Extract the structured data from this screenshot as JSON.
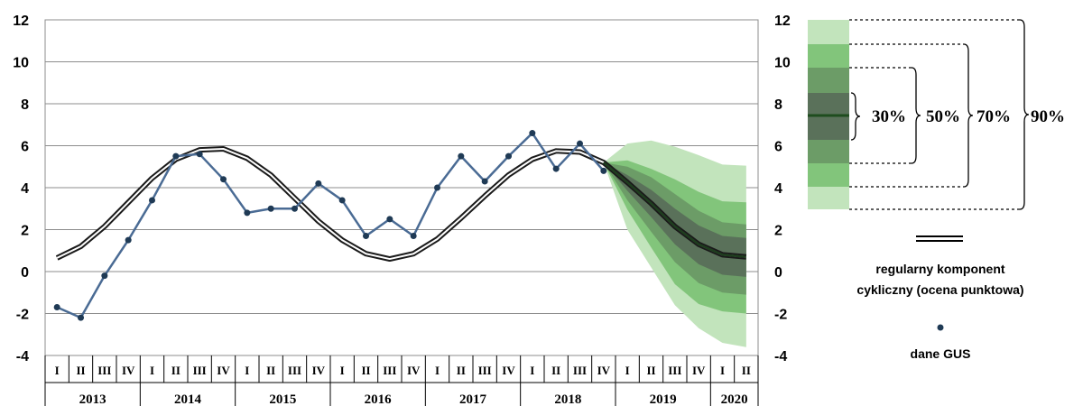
{
  "chart_data": {
    "type": "line",
    "title": "",
    "xlabel": "",
    "ylabel": "",
    "ylim": [
      -4,
      12
    ],
    "yticks": [
      "12",
      "10",
      "8",
      "6",
      "4",
      "2",
      "0",
      "-2",
      "-4"
    ],
    "quarter_labels": [
      "I",
      "II",
      "III",
      "IV",
      "I",
      "II",
      "III",
      "IV",
      "I",
      "II",
      "III",
      "IV",
      "I",
      "II",
      "III",
      "IV",
      "I",
      "II",
      "III",
      "IV",
      "I",
      "II",
      "III",
      "IV",
      "I",
      "II",
      "III",
      "IV",
      "I",
      "II"
    ],
    "year_labels": [
      "2013",
      "2014",
      "2015",
      "2016",
      "2017",
      "2018",
      "2019",
      "2020"
    ],
    "x": [
      "2013Q1",
      "2013Q2",
      "2013Q3",
      "2013Q4",
      "2014Q1",
      "2014Q2",
      "2014Q3",
      "2014Q4",
      "2015Q1",
      "2015Q2",
      "2015Q3",
      "2015Q4",
      "2016Q1",
      "2016Q2",
      "2016Q3",
      "2016Q4",
      "2017Q1",
      "2017Q2",
      "2017Q3",
      "2017Q4",
      "2018Q1",
      "2018Q2",
      "2018Q3",
      "2018Q4",
      "2019Q1",
      "2019Q2",
      "2019Q3",
      "2019Q4",
      "2020Q1",
      "2020Q2"
    ],
    "series": [
      {
        "name": "dane GUS",
        "color": "#4a6b94",
        "values": [
          -1.7,
          -2.2,
          -0.2,
          1.5,
          3.4,
          5.5,
          5.6,
          4.4,
          2.8,
          3.0,
          3.0,
          4.2,
          3.4,
          1.7,
          2.5,
          1.7,
          4.0,
          5.5,
          4.3,
          5.5,
          6.6,
          4.9,
          6.1,
          4.8,
          null,
          null,
          null,
          null,
          null,
          null
        ]
      },
      {
        "name": "regularny komponent cykliczny (ocena punktowa)",
        "color": "#1a1a1a",
        "values": [
          0.65,
          1.2,
          2.15,
          3.3,
          4.45,
          5.35,
          5.8,
          5.85,
          5.4,
          4.6,
          3.5,
          2.4,
          1.5,
          0.85,
          0.6,
          0.85,
          1.55,
          2.55,
          3.6,
          4.6,
          5.35,
          5.75,
          5.7,
          5.2,
          4.25,
          3.25,
          2.15,
          1.3,
          0.8,
          0.7
        ]
      }
    ],
    "fan": {
      "start_index": 23,
      "center": [
        5.2,
        4.25,
        3.25,
        2.15,
        1.3,
        0.8,
        0.7
      ],
      "bands": [
        {
          "label": "90%",
          "color": "#c2e4bc",
          "lower": [
            5.2,
            2.0,
            0.2,
            -1.6,
            -2.7,
            -3.4,
            -3.6
          ],
          "upper": [
            5.2,
            6.1,
            6.25,
            5.95,
            5.55,
            5.1,
            5.05
          ]
        },
        {
          "label": "70%",
          "color": "#82c57b",
          "lower": [
            5.2,
            2.95,
            1.15,
            -0.6,
            -1.55,
            -1.9,
            -2.0
          ],
          "upper": [
            5.2,
            5.3,
            4.9,
            4.4,
            3.8,
            3.35,
            3.3
          ]
        },
        {
          "label": "50%",
          "color": "#6c9c67",
          "lower": [
            5.2,
            3.4,
            1.9,
            0.45,
            -0.55,
            -1.0,
            -1.1
          ],
          "upper": [
            5.2,
            5.0,
            4.5,
            3.7,
            2.9,
            2.35,
            2.25
          ]
        },
        {
          "label": "30%",
          "color": "#5a715a",
          "lower": [
            5.2,
            3.85,
            2.6,
            1.3,
            0.35,
            -0.15,
            -0.25
          ],
          "upper": [
            5.2,
            4.6,
            3.9,
            3.0,
            2.2,
            1.7,
            1.6
          ]
        }
      ]
    },
    "grid": true
  },
  "legend": {
    "fan_labels": [
      "30%",
      "50%",
      "70%",
      "90%"
    ],
    "fan_colors": [
      "#c2e4bc",
      "#82c57b",
      "#6c9c67",
      "#5a715a",
      "#6c9c67",
      "#82c57b",
      "#c2e4bc"
    ],
    "fan_center_color": "#1e4d1e",
    "cyclical_label_line1": "regularny komponent",
    "cyclical_label_line2": "cykliczny (ocena punktowa)",
    "gus_label": "dane GUS",
    "gus_marker_color": "#1f3a55"
  }
}
